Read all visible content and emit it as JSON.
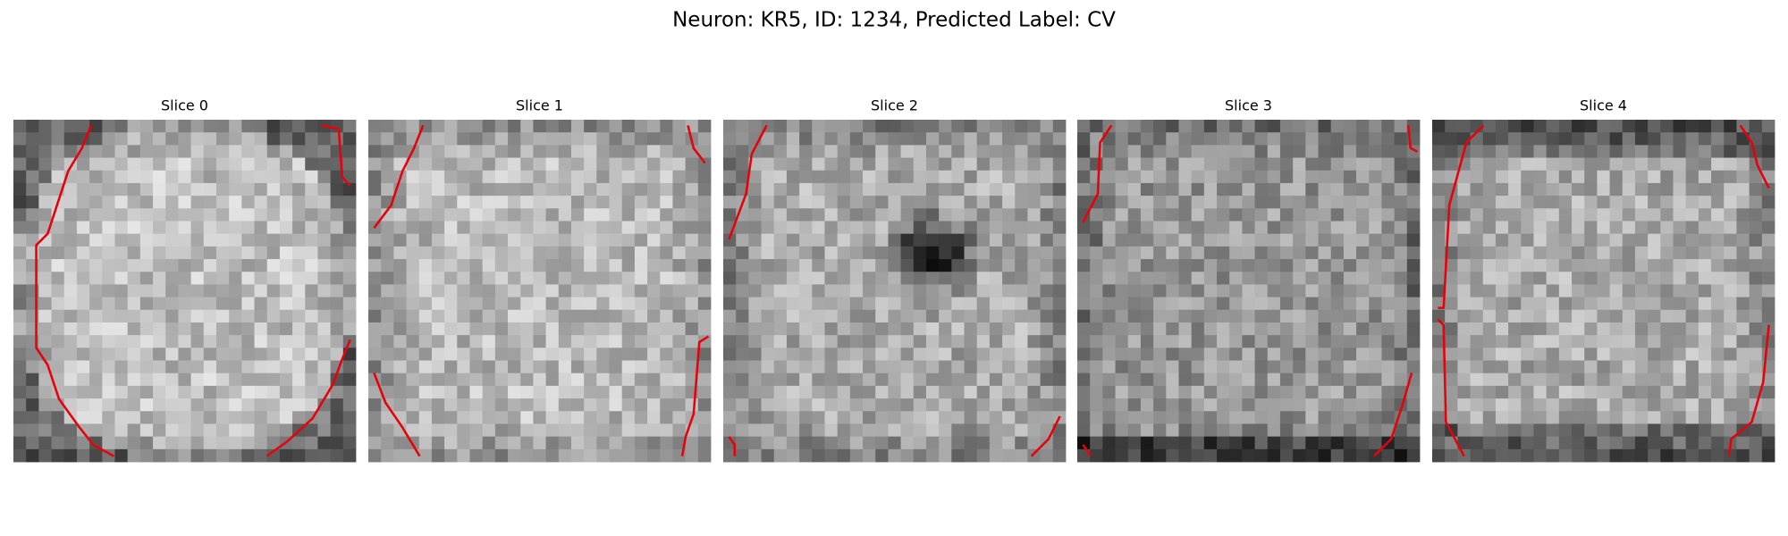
{
  "figure": {
    "title": "Neuron: KR5, ID: 1234, Predicted Label: CV",
    "panels": [
      {
        "title": "Slice 0"
      },
      {
        "title": "Slice 1"
      },
      {
        "title": "Slice 2"
      },
      {
        "title": "Slice 3"
      },
      {
        "title": "Slice 4"
      }
    ]
  }
}
